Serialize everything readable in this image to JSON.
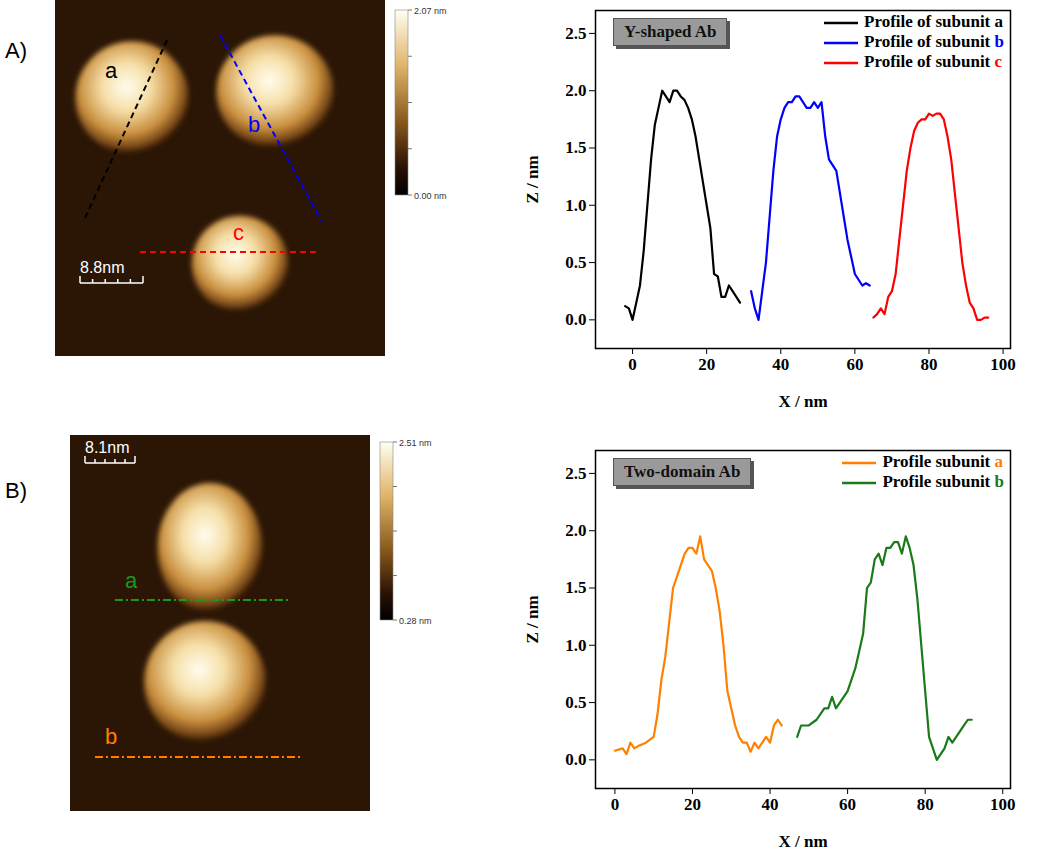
{
  "chart_data": [
    {
      "type": "line",
      "title": "Y-shaped Ab",
      "xlabel": "X / nm",
      "ylabel": "Z / nm",
      "xlim": [
        -10,
        102
      ],
      "xticks": [
        0,
        20,
        40,
        60,
        80,
        100
      ],
      "ylim": [
        -0.25,
        2.7
      ],
      "yticks": [
        {
          "value": 0,
          "label": "0.0"
        },
        {
          "value": 0.5,
          "label": "0.5"
        },
        {
          "value": 1,
          "label": "1.0"
        },
        {
          "value": 1.5,
          "label": "1.5"
        },
        {
          "value": 2,
          "label": "2.0"
        },
        {
          "value": 2.5,
          "label": "2.5"
        }
      ],
      "legend": "top-right",
      "series": [
        {
          "name": "Profile of subunit a",
          "color": "#000000",
          "x": [
            -2,
            -1,
            0,
            1,
            2,
            3,
            4,
            5,
            6,
            7,
            8,
            9,
            10,
            11,
            12,
            13,
            14,
            15,
            16,
            17,
            18,
            19,
            20,
            21,
            22,
            23,
            24,
            25,
            26,
            27,
            28,
            29
          ],
          "values": [
            0.12,
            0.1,
            0.0,
            0.15,
            0.3,
            0.6,
            1.0,
            1.4,
            1.7,
            1.85,
            2.0,
            1.95,
            1.9,
            2.0,
            2.0,
            1.95,
            1.92,
            1.85,
            1.75,
            1.6,
            1.4,
            1.2,
            1.0,
            0.8,
            0.4,
            0.38,
            0.2,
            0.2,
            0.3,
            0.25,
            0.2,
            0.15
          ]
        },
        {
          "name": "Profile of subunit b",
          "color": "#0000ff",
          "x": [
            32,
            33,
            34,
            35,
            36,
            37,
            38,
            39,
            40,
            41,
            42,
            43,
            44,
            45,
            46,
            47,
            48,
            49,
            50,
            51,
            52,
            53,
            54,
            55,
            56,
            57,
            58,
            59,
            60,
            61,
            62,
            63,
            64
          ],
          "values": [
            0.25,
            0.1,
            0.0,
            0.25,
            0.5,
            0.9,
            1.3,
            1.6,
            1.75,
            1.85,
            1.9,
            1.9,
            1.95,
            1.95,
            1.9,
            1.85,
            1.85,
            1.9,
            1.85,
            1.9,
            1.6,
            1.4,
            1.35,
            1.3,
            1.1,
            0.9,
            0.7,
            0.55,
            0.4,
            0.35,
            0.3,
            0.32,
            0.3
          ]
        },
        {
          "name": "Profile of subunit c",
          "color": "#ff0000",
          "x": [
            65,
            66,
            67,
            68,
            69,
            70,
            71,
            72,
            73,
            74,
            75,
            76,
            77,
            78,
            79,
            80,
            81,
            82,
            83,
            84,
            85,
            86,
            87,
            88,
            89,
            90,
            91,
            92,
            93,
            94,
            95,
            96
          ],
          "values": [
            0.02,
            0.05,
            0.1,
            0.05,
            0.2,
            0.25,
            0.4,
            0.7,
            1.0,
            1.3,
            1.5,
            1.65,
            1.72,
            1.75,
            1.75,
            1.8,
            1.78,
            1.8,
            1.8,
            1.75,
            1.6,
            1.4,
            1.1,
            0.8,
            0.5,
            0.3,
            0.15,
            0.1,
            0.0,
            0.0,
            0.02,
            0.02
          ]
        }
      ]
    },
    {
      "type": "line",
      "title": "Two-domain Ab",
      "xlabel": "X / nm",
      "ylabel": "Z / nm",
      "xlim": [
        -5,
        102
      ],
      "xticks": [
        0,
        20,
        40,
        60,
        80,
        100
      ],
      "ylim": [
        -0.25,
        2.7
      ],
      "yticks": [
        {
          "value": 0,
          "label": "0.0"
        },
        {
          "value": 0.5,
          "label": "0.5"
        },
        {
          "value": 1,
          "label": "1.0"
        },
        {
          "value": 1.5,
          "label": "1.5"
        },
        {
          "value": 2,
          "label": "2.0"
        },
        {
          "value": 2.5,
          "label": "2.5"
        }
      ],
      "legend": "top-right",
      "series": [
        {
          "name": "Profile subunit a",
          "color": "#ff8000",
          "x": [
            0,
            2,
            3,
            4,
            5,
            6,
            8,
            10,
            11,
            12,
            13,
            14,
            15,
            16,
            17,
            18,
            19,
            20,
            21,
            22,
            23,
            24,
            25,
            26,
            27,
            28,
            29,
            30,
            31,
            32,
            33,
            34,
            35,
            36,
            37,
            38,
            39,
            40,
            41,
            42,
            43
          ],
          "values": [
            0.08,
            0.1,
            0.05,
            0.15,
            0.1,
            0.12,
            0.15,
            0.2,
            0.4,
            0.7,
            0.9,
            1.2,
            1.5,
            1.6,
            1.7,
            1.8,
            1.85,
            1.85,
            1.8,
            1.95,
            1.75,
            1.7,
            1.65,
            1.5,
            1.3,
            1.0,
            0.6,
            0.45,
            0.3,
            0.2,
            0.15,
            0.15,
            0.07,
            0.15,
            0.1,
            0.15,
            0.2,
            0.15,
            0.3,
            0.35,
            0.3
          ]
        },
        {
          "name": "Profile subunit b",
          "color": "#1a7a1a",
          "x": [
            47,
            48,
            50,
            52,
            54,
            55,
            56,
            57,
            58,
            60,
            62,
            64,
            65,
            66,
            67,
            68,
            69,
            70,
            71,
            72,
            73,
            74,
            75,
            76,
            77,
            78,
            79,
            80,
            81,
            82,
            83,
            84,
            85,
            86,
            87,
            88,
            89,
            90,
            91,
            92
          ],
          "values": [
            0.2,
            0.3,
            0.3,
            0.35,
            0.45,
            0.45,
            0.55,
            0.45,
            0.5,
            0.6,
            0.8,
            1.1,
            1.5,
            1.55,
            1.75,
            1.8,
            1.7,
            1.85,
            1.85,
            1.9,
            1.9,
            1.8,
            1.95,
            1.85,
            1.7,
            1.4,
            1.0,
            0.6,
            0.2,
            0.1,
            0.0,
            0.05,
            0.1,
            0.2,
            0.15,
            0.2,
            0.25,
            0.3,
            0.35,
            0.35
          ]
        }
      ]
    }
  ],
  "images": [
    {
      "panel": "A)",
      "scale_bar": "8.8nm",
      "color_bar": {
        "top": "2.07 nm",
        "bottom": "0.00 nm"
      },
      "profile_labels": [
        {
          "label": "a",
          "color": "#000000"
        },
        {
          "label": "b",
          "color": "#0000ff"
        },
        {
          "label": "c",
          "color": "#ff0000"
        }
      ]
    },
    {
      "panel": "B)",
      "scale_bar": "8.1nm",
      "color_bar": {
        "top": "2.51 nm",
        "bottom": "0.28 nm"
      },
      "profile_labels": [
        {
          "label": "a",
          "color": "#1a9a1a"
        },
        {
          "label": "b",
          "color": "#ff8000"
        }
      ]
    }
  ]
}
